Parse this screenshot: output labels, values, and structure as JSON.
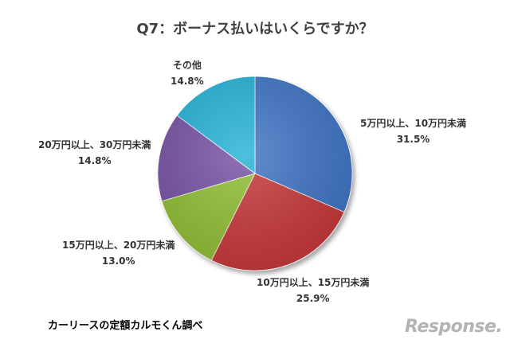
{
  "chart_data": {
    "type": "pie",
    "title": "Q7：ボーナス払いはいくらですか？",
    "slices": [
      {
        "label": "5万円以上、10万円未満",
        "value": 31.5,
        "value_text": "31.5%",
        "color": "#3f74c6"
      },
      {
        "label": "10万円以上、15万円未満",
        "value": 25.9,
        "value_text": "25.9%",
        "color": "#c8383a"
      },
      {
        "label": "15万円以上、20万円未満",
        "value": 13.0,
        "value_text": "13.0%",
        "color": "#92c035"
      },
      {
        "label": "20万円以上、30万円未満",
        "value": 14.8,
        "value_text": "14.8%",
        "color": "#7852a6"
      },
      {
        "label": "その他",
        "value": 14.8,
        "value_text": "14.8%",
        "color": "#26b4d8"
      }
    ],
    "start": "12 o'clock",
    "direction": "clockwise"
  },
  "footer": {
    "source": "カーリースの定額カルモくん調べ",
    "logo_text": "Response."
  }
}
